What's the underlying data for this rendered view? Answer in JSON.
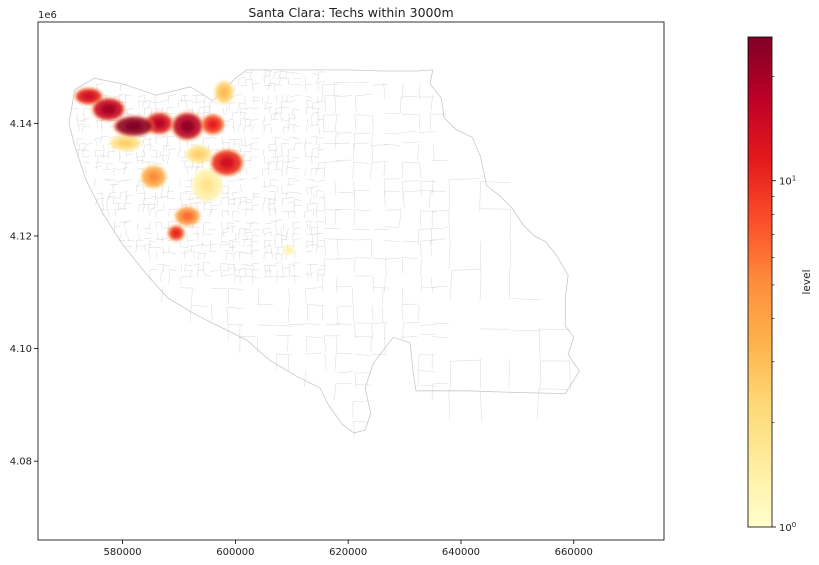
{
  "chart_data": {
    "type": "heatmap",
    "title": "Santa Clara: Techs within 3000m",
    "xlabel": "",
    "ylabel": "",
    "y_offset_label": "1e6",
    "xlim": [
      565000,
      676000
    ],
    "ylim": [
      4066000,
      4158000
    ],
    "x_ticks": [
      580000,
      600000,
      620000,
      640000,
      660000
    ],
    "x_tick_labels": [
      "580000",
      "600000",
      "620000",
      "640000",
      "660000"
    ],
    "y_ticks": [
      4080000,
      4100000,
      4120000,
      4140000
    ],
    "y_tick_labels": [
      "4.08",
      "4.10",
      "4.12",
      "4.14"
    ],
    "grid": false,
    "colorbar": {
      "label": "level",
      "scale": "log",
      "colormap": "YlOrRd",
      "range": [
        1,
        26
      ],
      "ticks": [
        1,
        10
      ],
      "tick_labels": [
        "10^0",
        "10^1"
      ]
    },
    "colormap_stops": [
      "#ffffcc",
      "#ffeda0",
      "#fed976",
      "#feb24c",
      "#fd8d3c",
      "#fc4e2a",
      "#e31a1c",
      "#bd0026",
      "#800026"
    ],
    "county_outline": [
      [
        571500,
        4146000
      ],
      [
        575000,
        4148000
      ],
      [
        580000,
        4147000
      ],
      [
        586000,
        4145000
      ],
      [
        592000,
        4146500
      ],
      [
        596000,
        4144000
      ],
      [
        600000,
        4148000
      ],
      [
        602000,
        4149500
      ],
      [
        608000,
        4149500
      ],
      [
        614000,
        4149500
      ],
      [
        620000,
        4149500
      ],
      [
        626000,
        4149300
      ],
      [
        632000,
        4149300
      ],
      [
        635000,
        4149500
      ],
      [
        634500,
        4147000
      ],
      [
        636500,
        4144500
      ],
      [
        637000,
        4141000
      ],
      [
        639000,
        4139000
      ],
      [
        642000,
        4137500
      ],
      [
        643500,
        4134000
      ],
      [
        644500,
        4129000
      ],
      [
        647000,
        4127000
      ],
      [
        649000,
        4125000
      ],
      [
        651000,
        4122000
      ],
      [
        653000,
        4120000
      ],
      [
        655000,
        4119000
      ],
      [
        657000,
        4116500
      ],
      [
        659000,
        4113000
      ],
      [
        658500,
        4109000
      ],
      [
        658500,
        4104000
      ],
      [
        660000,
        4102000
      ],
      [
        659000,
        4099000
      ],
      [
        661000,
        4096000
      ],
      [
        658500,
        4092000
      ],
      [
        650000,
        4092200
      ],
      [
        641000,
        4092500
      ],
      [
        632000,
        4092500
      ],
      [
        631500,
        4096000
      ],
      [
        631000,
        4101000
      ],
      [
        628000,
        4102000
      ],
      [
        624500,
        4097500
      ],
      [
        623000,
        4093000
      ],
      [
        624000,
        4088500
      ],
      [
        623000,
        4085500
      ],
      [
        621000,
        4085000
      ],
      [
        619000,
        4086500
      ],
      [
        616500,
        4090000
      ],
      [
        615000,
        4093000
      ],
      [
        611000,
        4095000
      ],
      [
        606000,
        4098000
      ],
      [
        602000,
        4101500
      ],
      [
        597000,
        4104000
      ],
      [
        593000,
        4106000
      ],
      [
        588000,
        4109000
      ],
      [
        584000,
        4113500
      ],
      [
        580000,
        4118500
      ],
      [
        576500,
        4124000
      ],
      [
        573500,
        4130000
      ],
      [
        571500,
        4136000
      ],
      [
        570500,
        4140000
      ],
      [
        571500,
        4146000
      ]
    ],
    "hotspots": [
      {
        "x": 582000,
        "y": 4139500,
        "rx": 3200,
        "ry": 1600,
        "level": 24
      },
      {
        "x": 577500,
        "y": 4142500,
        "rx": 2600,
        "ry": 1800,
        "level": 16
      },
      {
        "x": 574000,
        "y": 4144800,
        "rx": 2200,
        "ry": 1300,
        "level": 12
      },
      {
        "x": 586500,
        "y": 4140000,
        "rx": 2200,
        "ry": 1700,
        "level": 14
      },
      {
        "x": 591500,
        "y": 4139500,
        "rx": 2500,
        "ry": 2200,
        "level": 18
      },
      {
        "x": 596000,
        "y": 4139800,
        "rx": 1800,
        "ry": 1600,
        "level": 9
      },
      {
        "x": 598500,
        "y": 4133000,
        "rx": 2600,
        "ry": 2100,
        "level": 11
      },
      {
        "x": 585500,
        "y": 4130500,
        "rx": 2000,
        "ry": 1800,
        "level": 4
      },
      {
        "x": 591500,
        "y": 4123500,
        "rx": 2000,
        "ry": 1500,
        "level": 5
      },
      {
        "x": 589500,
        "y": 4120500,
        "rx": 1300,
        "ry": 1200,
        "level": 9
      },
      {
        "x": 580500,
        "y": 4136500,
        "rx": 2500,
        "ry": 1200,
        "level": 2
      },
      {
        "x": 595000,
        "y": 4129000,
        "rx": 2400,
        "ry": 2600,
        "level": 1.4
      },
      {
        "x": 593500,
        "y": 4134500,
        "rx": 2000,
        "ry": 1400,
        "level": 2
      },
      {
        "x": 598000,
        "y": 4145500,
        "rx": 1500,
        "ry": 1800,
        "level": 2.5
      },
      {
        "x": 609500,
        "y": 4117500,
        "rx": 900,
        "ry": 700,
        "level": 1.2
      }
    ]
  }
}
